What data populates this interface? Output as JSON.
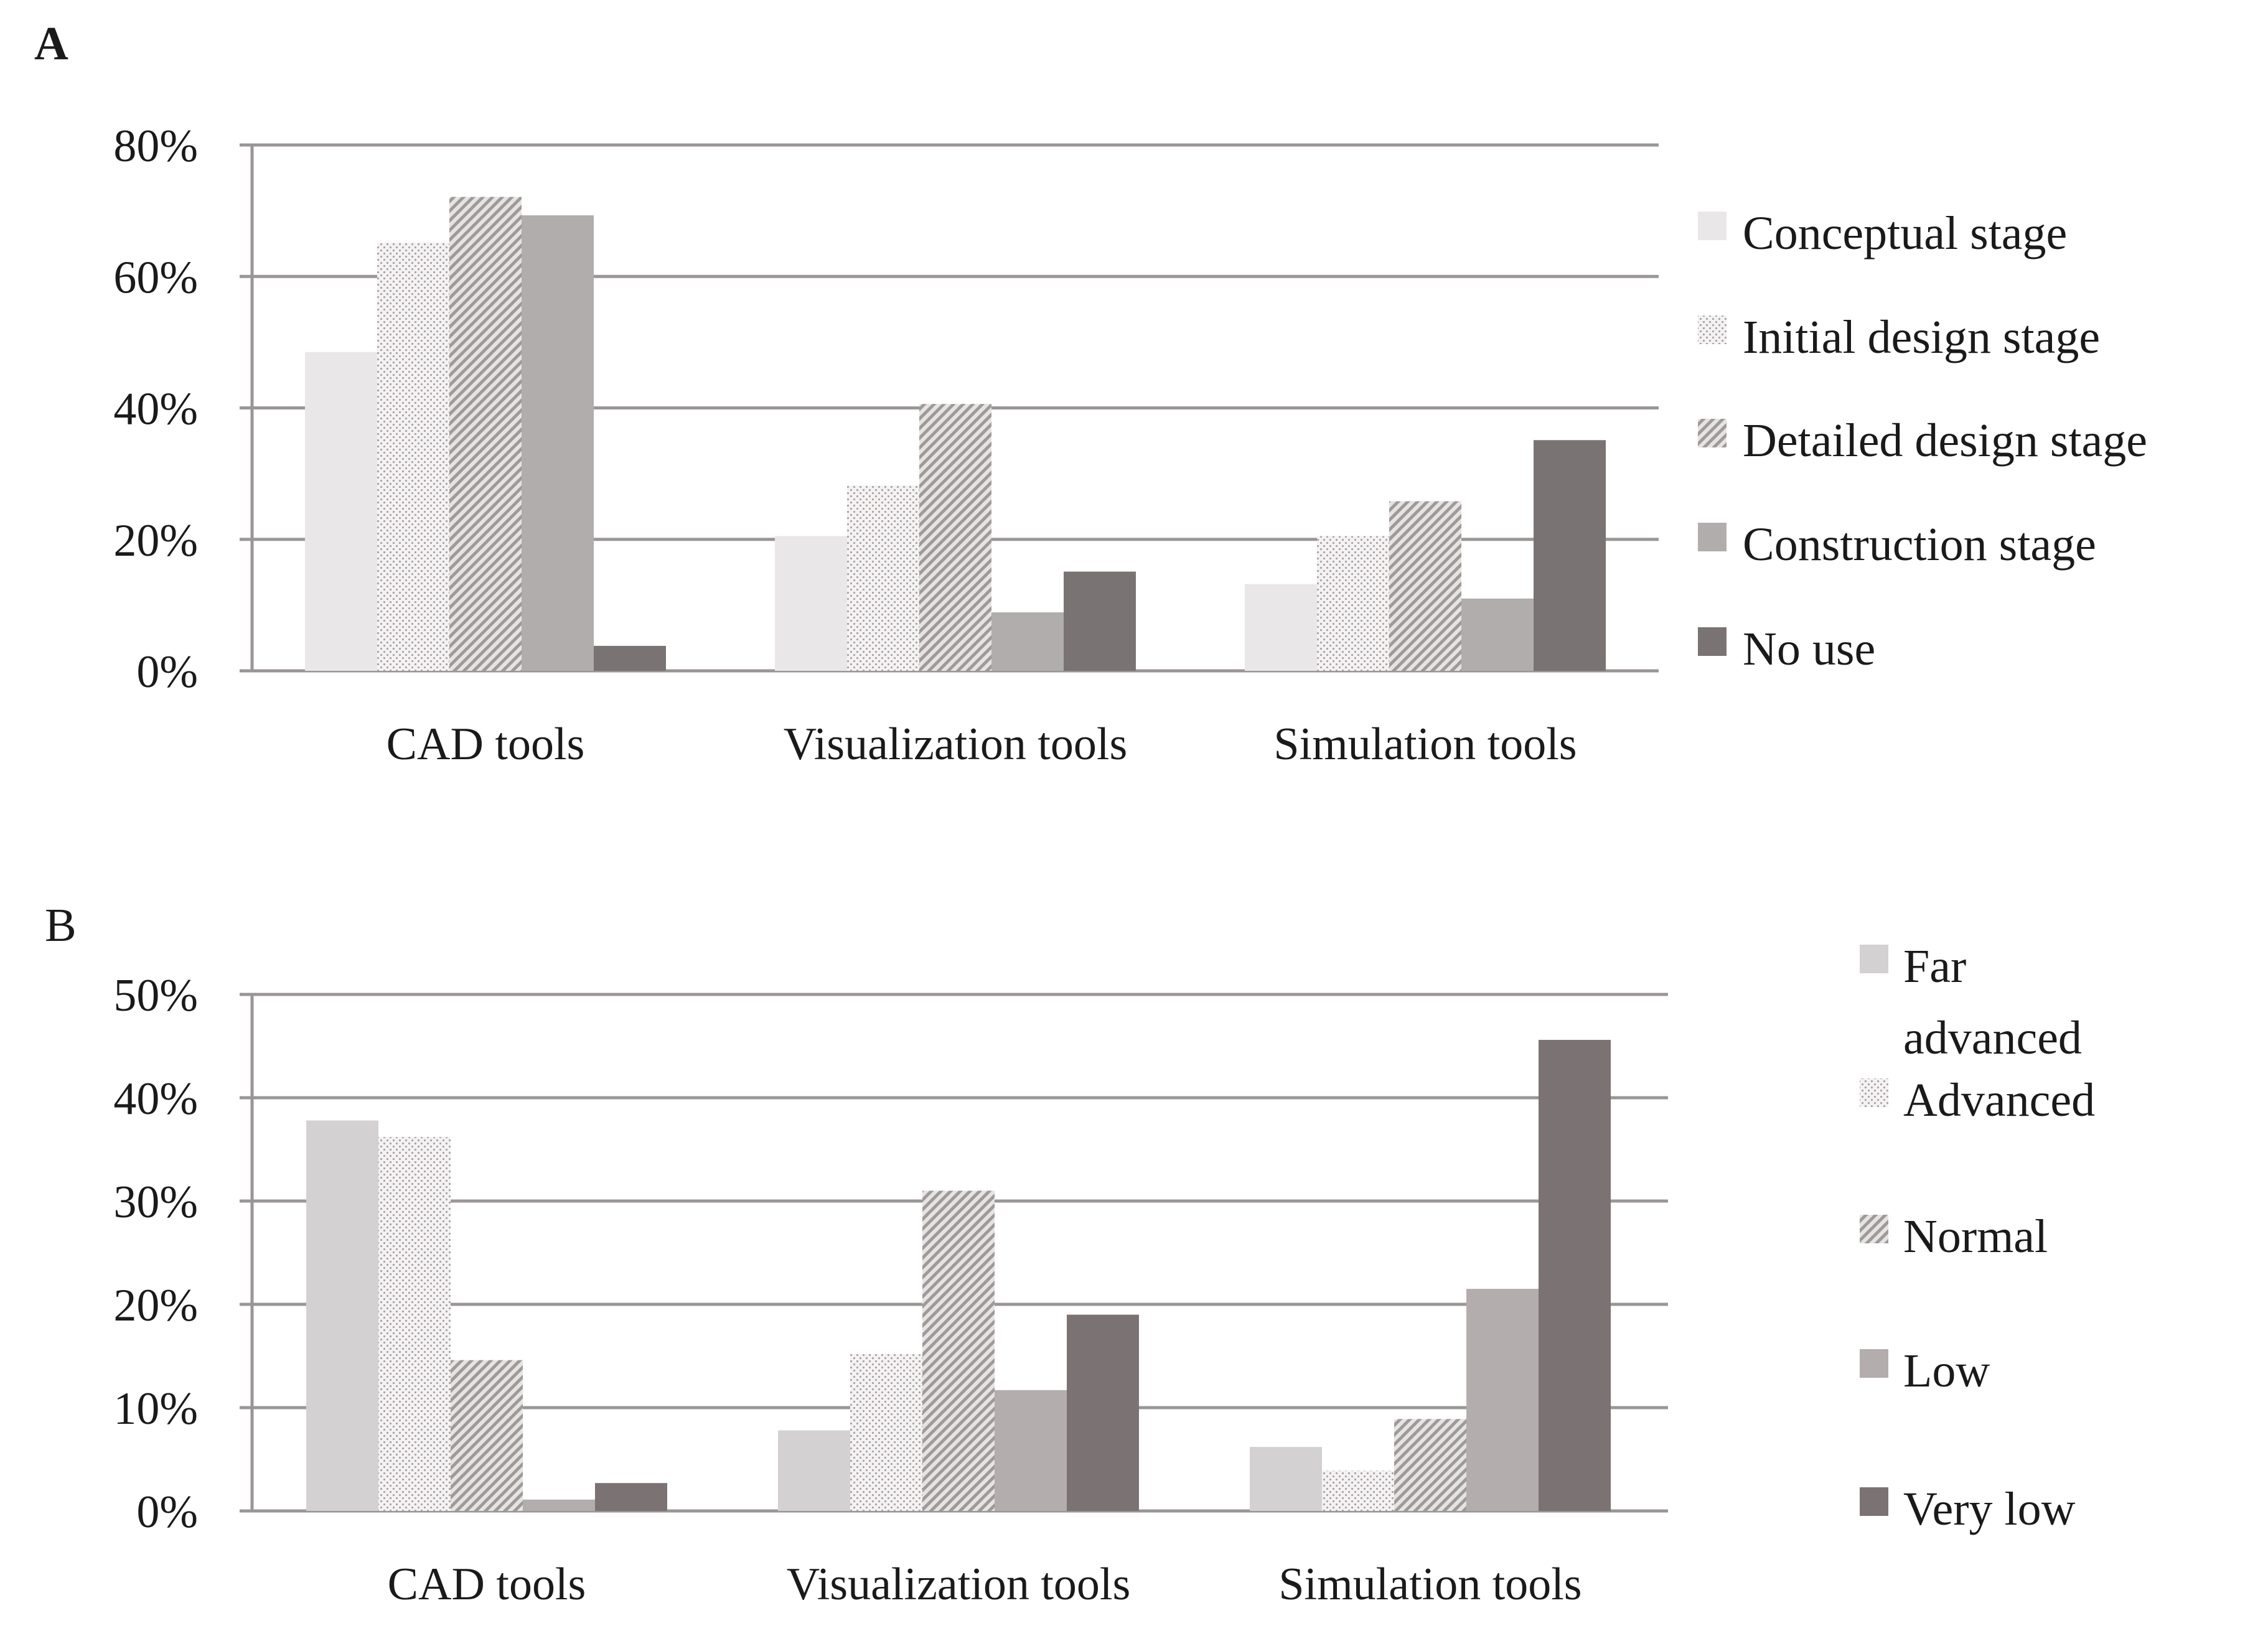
{
  "chart_data": [
    {
      "panel_label": "A",
      "type": "bar",
      "categories": [
        "CAD tools",
        "Visualization tools",
        "Simulation tools"
      ],
      "ylim": [
        0,
        80
      ],
      "yticks": [
        0,
        20,
        40,
        60,
        80
      ],
      "ytick_labels": [
        "0%",
        "20%",
        "40%",
        "60%",
        "80%"
      ],
      "grid": true,
      "legend_position": "right",
      "series": [
        {
          "name": "Conceptual stage",
          "color": "#e9e7e8",
          "pattern": "solid",
          "values": [
            48.5,
            20.5,
            13.2
          ]
        },
        {
          "name": "Initial design stage",
          "color": "#d6d3d3",
          "pattern": "dots",
          "values": [
            65.2,
            28.2,
            20.5
          ]
        },
        {
          "name": "Detailed design stage",
          "color": "#bebbbb",
          "pattern": "diagonal",
          "values": [
            72.1,
            40.6,
            25.8
          ]
        },
        {
          "name": "Construction stage",
          "color": "#b2adad",
          "pattern": "solid",
          "values": [
            69.3,
            8.9,
            11.0
          ]
        },
        {
          "name": "No use",
          "color": "#7a7373",
          "pattern": "solid",
          "values": [
            3.8,
            15.1,
            35.1
          ]
        }
      ]
    },
    {
      "panel_label": "B",
      "type": "bar",
      "categories": [
        "CAD tools",
        "Visualization tools",
        "Simulation tools"
      ],
      "ylim": [
        0,
        50
      ],
      "yticks": [
        0,
        10,
        20,
        30,
        40,
        50
      ],
      "ytick_labels": [
        "0%",
        "10%",
        "20%",
        "30%",
        "40%",
        "50%"
      ],
      "grid": true,
      "legend_position": "right",
      "series": [
        {
          "name": "Far advanced",
          "label_lines": [
            "Far",
            "advanced"
          ],
          "color": "#d3d1d1",
          "pattern": "solid",
          "values": [
            37.8,
            7.8,
            6.2
          ]
        },
        {
          "name": "Advanced",
          "label_lines": [
            "Advanced"
          ],
          "color": "#ebe9e9",
          "pattern": "dots",
          "values": [
            36.2,
            15.2,
            3.9
          ]
        },
        {
          "name": "Normal",
          "label_lines": [
            "Normal"
          ],
          "color": "#c3bfbf",
          "pattern": "diagonal",
          "values": [
            14.6,
            31.0,
            8.9
          ]
        },
        {
          "name": "Low",
          "label_lines": [
            "Low"
          ],
          "color": "#b3adad",
          "pattern": "solid",
          "values": [
            1.1,
            11.7,
            21.5
          ]
        },
        {
          "name": "Very low",
          "label_lines": [
            "Very low"
          ],
          "color": "#7b7373",
          "pattern": "solid",
          "values": [
            2.7,
            19.0,
            45.6
          ]
        }
      ]
    }
  ]
}
